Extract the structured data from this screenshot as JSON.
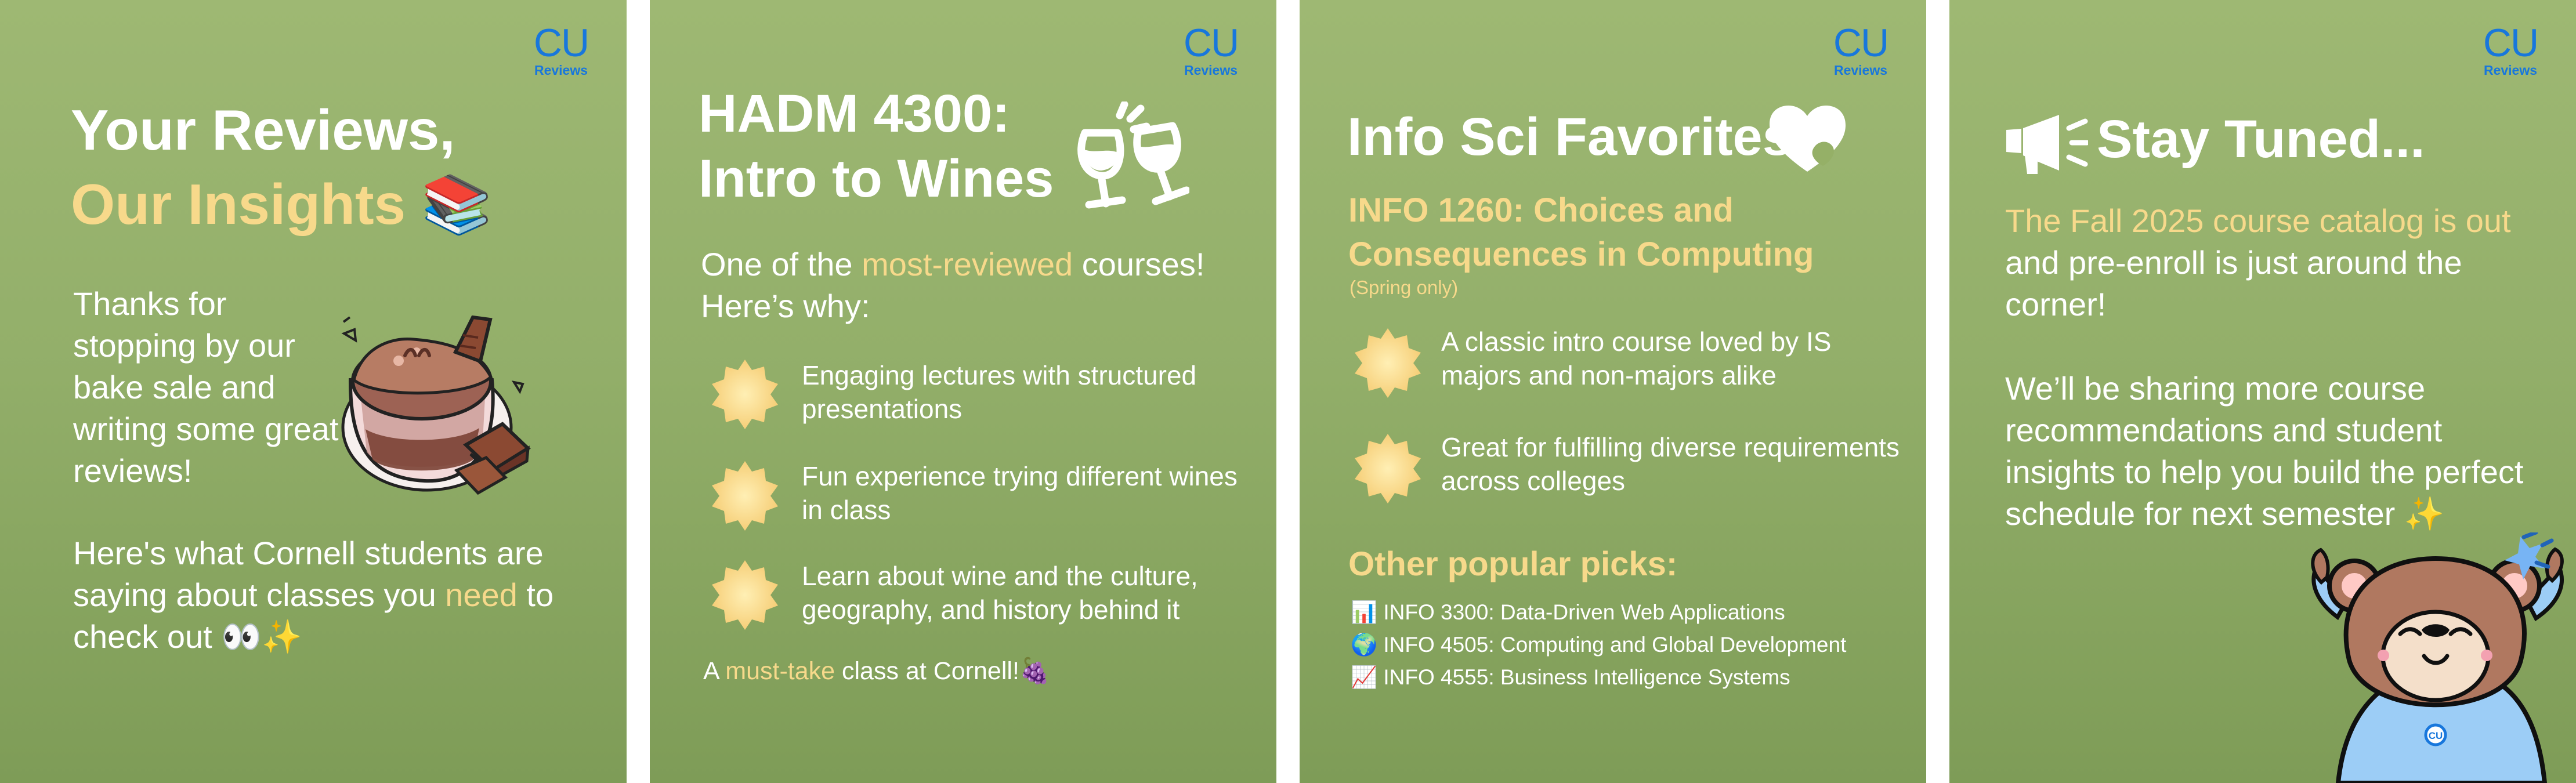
{
  "brand": {
    "logo_mark": "CU",
    "logo_sub": "Reviews",
    "accent": "#1877dc",
    "highlight": "#f7d98b",
    "background": "#9eb873"
  },
  "panel1": {
    "title_line1": "Your Reviews,",
    "title_line2": "Our Insights",
    "title_emoji": "📚",
    "paragraph1": "Thanks for stopping by our bake sale and writing some great reviews!",
    "paragraph2_prefix": "Here's what Cornell students are saying about classes you ",
    "paragraph2_highlight": "need",
    "paragraph2_suffix": " to check out 👀✨",
    "illustration": "chocolate-dessert"
  },
  "panel2": {
    "title_line1": "HADM 4300:",
    "title_line2": "Intro to Wines",
    "title_icon": "wine-glasses-icon",
    "intro_prefix": "One of the ",
    "intro_highlight": "most-reviewed",
    "intro_suffix": " courses! Here’s why:",
    "bullets": [
      "Engaging lectures with structured presentations",
      "Fun experience trying different wines in class",
      "Learn about wine and the culture, geography, and history behind it"
    ],
    "closing_prefix": "A ",
    "closing_highlight": "must-take",
    "closing_suffix": " class at Cornell!🍇"
  },
  "panel3": {
    "title": "Info Sci Favorites",
    "title_icon": "heart-icon",
    "featured_course_line1": "INFO 1260: Choices and",
    "featured_course_line2": "Consequences in Computing",
    "availability": "(Spring only)",
    "bullets": [
      "A classic intro course loved by IS majors and non-majors alike",
      "Great for fulfilling diverse requirements across colleges"
    ],
    "popular_heading": "Other popular picks:",
    "picks": [
      "📊 INFO 3300: Data-Driven Web Applications",
      "🌍 INFO 4505: Computing and Global Development",
      "📈 INFO 4555: Business Intelligence Systems"
    ]
  },
  "panel4": {
    "title": "Stay Tuned...",
    "title_icon": "megaphone-icon",
    "announcement_highlight": "The Fall 2025 course catalog is out",
    "announcement_suffix": " and pre-enroll is just around the corner!",
    "sharing_text": "We’ll be sharing more course recommendations and student insights to help you build the perfect schedule for next semester ✨",
    "illustration": "cheering-bear"
  }
}
